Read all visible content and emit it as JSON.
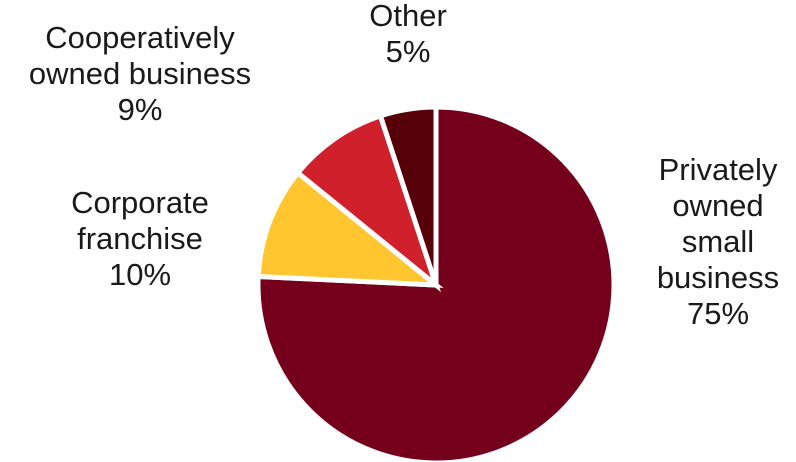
{
  "chart_data": {
    "type": "pie",
    "start_angle_deg": 90,
    "direction": "clockwise",
    "slices": [
      {
        "name": "Privately owned small business",
        "value": 75,
        "label_lines": [
          "Privately",
          "owned",
          "small",
          "business",
          "75%"
        ],
        "color": "#75001b"
      },
      {
        "name": "Corporate franchise",
        "value": 10,
        "label_lines": [
          "Corporate",
          "franchise",
          "10%"
        ],
        "color": "#ffc62f"
      },
      {
        "name": "Cooperatively owned business",
        "value": 9,
        "label_lines": [
          "Cooperatively",
          "owned business",
          "9%"
        ],
        "color": "#d0202b"
      },
      {
        "name": "Other",
        "value": 5,
        "label_lines": [
          "Other",
          "5%"
        ],
        "color": "#560009"
      }
    ]
  }
}
